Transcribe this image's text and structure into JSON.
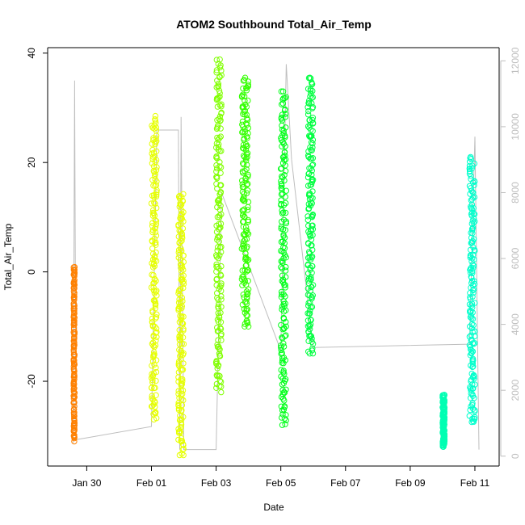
{
  "chart_data": {
    "type": "scatter",
    "title": "ATOM2 Southbound Total_Air_Temp",
    "xlabel": "Date",
    "ylabel": "Total_Air_Temp",
    "x_ticks": [
      "Jan 30",
      "Feb 01",
      "Feb 03",
      "Feb 05",
      "Feb 07",
      "Feb 09",
      "Feb 11"
    ],
    "y_ticks": [
      -20,
      0,
      20,
      40
    ],
    "y2_ticks": [
      0,
      2000,
      4000,
      6000,
      8000,
      10000,
      12000
    ],
    "x_range_days": [
      "Jan 28 19:00",
      "Feb 11 18:00"
    ],
    "ylim": [
      -35.5,
      41
    ],
    "y2lim": [
      -300,
      12400
    ],
    "grid": false,
    "colors": {
      "axis": "#000000",
      "secondary_axis": "#bebebe",
      "altitude_line": "#bebebe"
    },
    "series": [
      {
        "date": "Jan 29",
        "start": "Jan 29 14:15",
        "end": "Jan 29 15:00",
        "y_min": -31,
        "y_max": 1,
        "color": "#ff8000"
      },
      {
        "date": "Feb 01",
        "start": "Feb 01 00:00",
        "end": "Feb 01 04:00",
        "y_min": -27,
        "y_max": 28.5,
        "color": "#e6ff00"
      },
      {
        "date": "Feb 01",
        "start": "Feb 01 20:00",
        "end": "Feb 02 00:00",
        "y_min": -33.5,
        "y_max": 14.5,
        "color": "#e6ff00"
      },
      {
        "date": "Feb 03",
        "start": "Feb 03 00:00",
        "end": "Feb 03 04:00",
        "y_min": -22,
        "y_max": 39,
        "color": "#80ff00"
      },
      {
        "date": "Feb 03",
        "start": "Feb 03 19:00",
        "end": "Feb 04 00:00",
        "y_min": -10,
        "y_max": 35.5,
        "color": "#33ff00"
      },
      {
        "date": "Feb 05",
        "start": "Feb 05 00:00",
        "end": "Feb 05 04:00",
        "y_min": -28,
        "y_max": 33,
        "color": "#00ff1a"
      },
      {
        "date": "Feb 05",
        "start": "Feb 05 20:00",
        "end": "Feb 06 00:00",
        "y_min": -15,
        "y_max": 35.5,
        "color": "#00ff40"
      },
      {
        "date": "Feb 10",
        "start": "Feb 10 00:00",
        "end": "Feb 10 01:30",
        "y_min": -32,
        "y_max": -22.5,
        "color": "#00ffb3"
      },
      {
        "date": "Feb 10",
        "start": "Feb 10 20:00",
        "end": "Feb 11 00:00",
        "y_min": -28,
        "y_max": 21,
        "color": "#00ffcc"
      }
    ],
    "altitude_line": {
      "name": "",
      "points": [
        [
          "Jan 29 14:00",
          400
        ],
        [
          "Jan 29 15:00",
          11400
        ],
        [
          "Jan 29 16:00",
          500
        ],
        [
          "Feb 01 00:00",
          900
        ],
        [
          "Feb 01 04:00",
          9900
        ],
        [
          "Feb 01 20:00",
          9900
        ],
        [
          "Feb 01 21:00",
          200
        ],
        [
          "Feb 01 22:00",
          10300
        ],
        [
          "Feb 02 00:00",
          200
        ],
        [
          "Feb 03 00:00",
          200
        ],
        [
          "Feb 03 04:00",
          8000
        ],
        [
          "Feb 05 00:00",
          3200
        ],
        [
          "Feb 05 04:00",
          11900
        ],
        [
          "Feb 05 08:00",
          9000
        ],
        [
          "Feb 06 00:00",
          3300
        ],
        [
          "Feb 10 20:00",
          3400
        ],
        [
          "Feb 11 00:00",
          9700
        ],
        [
          "Feb 11 03:00",
          200
        ]
      ]
    }
  }
}
